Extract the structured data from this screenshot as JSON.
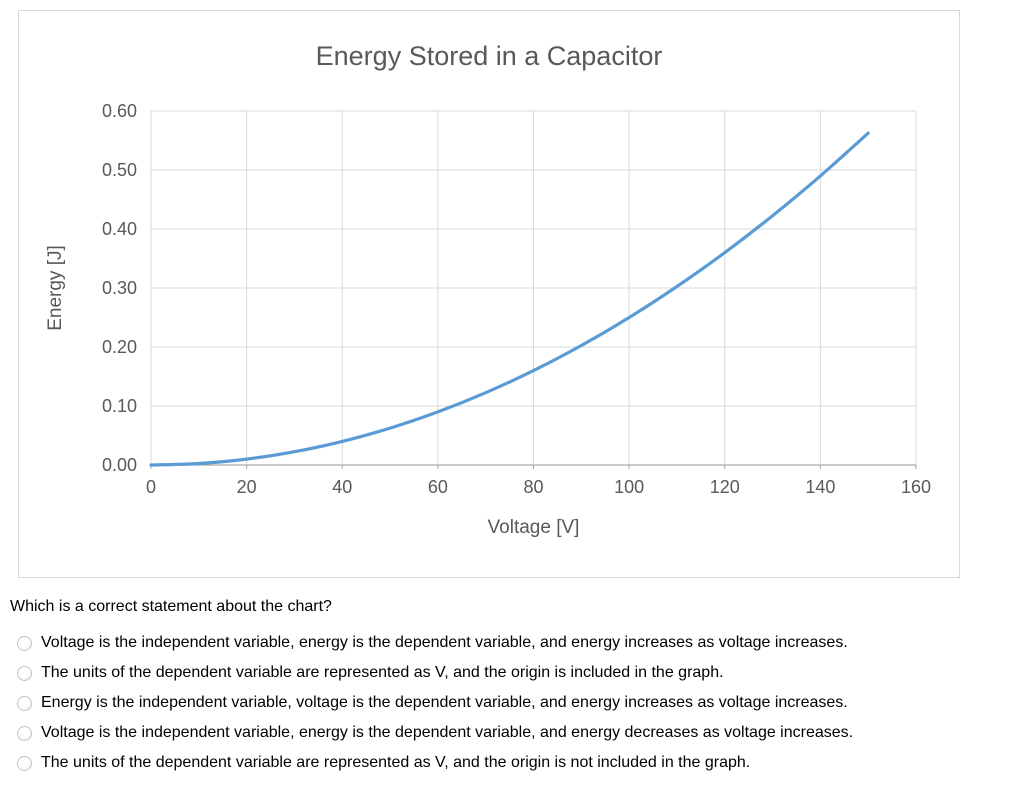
{
  "chart_data": {
    "type": "line",
    "title": "Energy Stored in a Capacitor",
    "xlabel": "Voltage [V]",
    "ylabel": "Energy [J]",
    "xlim": [
      0,
      160
    ],
    "ylim": [
      0,
      0.6
    ],
    "x_ticks": [
      0,
      20,
      40,
      60,
      80,
      100,
      120,
      140,
      160
    ],
    "y_ticks": [
      "0.00",
      "0.10",
      "0.20",
      "0.30",
      "0.40",
      "0.50",
      "0.60"
    ],
    "grid": true,
    "legend": "none",
    "colors": {
      "line": "#5b9bd5",
      "gridline": "#d9d9d9",
      "axis": "#a6a6a6",
      "text": "#595959"
    },
    "series": [
      {
        "name": "Energy",
        "x": [
          0,
          10,
          20,
          30,
          40,
          50,
          60,
          70,
          80,
          90,
          100,
          110,
          120,
          130,
          140,
          150
        ],
        "y": [
          0,
          0.0025,
          0.01,
          0.0225,
          0.04,
          0.0625,
          0.09,
          0.1225,
          0.16,
          0.2025,
          0.25,
          0.3025,
          0.36,
          0.4225,
          0.49,
          0.5625
        ]
      }
    ]
  },
  "question": {
    "prompt": "Which is a correct statement about the chart?",
    "options": [
      "Voltage is the independent variable, energy is the dependent variable, and energy increases as voltage increases.",
      "The units of the dependent variable are represented as V, and the origin is included in the graph.",
      "Energy is the independent variable, voltage is the dependent variable, and energy increases as voltage increases.",
      "Voltage is the independent variable, energy is the dependent variable, and energy decreases as voltage increases.",
      "The units of the dependent variable are represented as V, and the origin is not included in the graph."
    ]
  }
}
